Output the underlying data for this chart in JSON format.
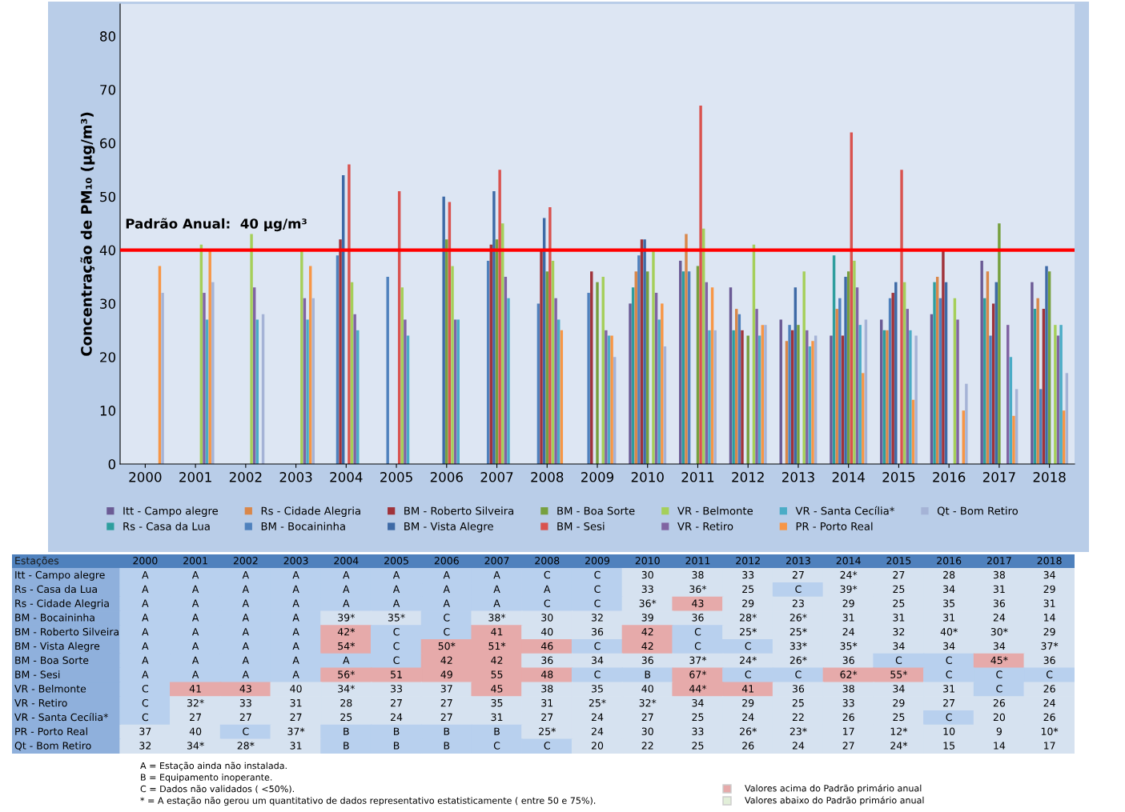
{
  "chart_data": {
    "type": "bar",
    "ylabel": "Concentração de PM₁₀ (µg/m³)",
    "categories": [
      "2000",
      "2001",
      "2002",
      "2003",
      "2004",
      "2005",
      "2006",
      "2007",
      "2008",
      "2009",
      "2010",
      "2011",
      "2012",
      "2013",
      "2014",
      "2015",
      "2016",
      "2017",
      "2018"
    ],
    "ylim": [
      0,
      86
    ],
    "yticks": [
      0,
      10,
      20,
      30,
      40,
      50,
      60,
      70,
      80
    ],
    "grid": false,
    "legend": "bottom",
    "series": [
      {
        "name": "Itt - Campo alegre",
        "color": "#6b5b95",
        "values": [
          null,
          null,
          null,
          null,
          null,
          null,
          null,
          null,
          null,
          null,
          30,
          38,
          33,
          27,
          24,
          27,
          28,
          38,
          34
        ],
        "value_labels": [
          "A",
          "A",
          "A",
          "A",
          "A",
          "A",
          "A",
          "A",
          "C",
          "C",
          "30",
          "38",
          "33",
          "27",
          "24*",
          "27",
          "28",
          "38",
          "34"
        ]
      },
      {
        "name": "Rs - Casa da Lua",
        "color": "#2e9e9e",
        "values": [
          null,
          null,
          null,
          null,
          null,
          null,
          null,
          null,
          null,
          null,
          33,
          36,
          25,
          null,
          39,
          25,
          34,
          31,
          29
        ],
        "value_labels": [
          "A",
          "A",
          "A",
          "A",
          "A",
          "A",
          "A",
          "A",
          "A",
          "C",
          "33",
          "36*",
          "25",
          "C",
          "39*",
          "25",
          "34",
          "31",
          "29"
        ]
      },
      {
        "name": "Rs - Cidade Alegria",
        "color": "#d9874a",
        "values": [
          null,
          null,
          null,
          null,
          null,
          null,
          null,
          null,
          null,
          null,
          36,
          43,
          29,
          23,
          29,
          25,
          35,
          36,
          31
        ],
        "value_labels": [
          "A",
          "A",
          "A",
          "A",
          "A",
          "A",
          "A",
          "A",
          "C",
          "C",
          "36*",
          "43",
          "29",
          "23",
          "29",
          "25",
          "35",
          "36",
          "31"
        ]
      },
      {
        "name": "BM - Bocaininha",
        "color": "#4f81bd",
        "values": [
          null,
          null,
          null,
          null,
          39,
          35,
          null,
          38,
          30,
          32,
          39,
          36,
          28,
          26,
          31,
          31,
          31,
          24,
          14
        ],
        "value_labels": [
          "A",
          "A",
          "A",
          "A",
          "39*",
          "35*",
          "C",
          "38*",
          "30",
          "32",
          "39",
          "36",
          "28*",
          "26*",
          "31",
          "31",
          "31",
          "24",
          "14"
        ]
      },
      {
        "name": "BM - Roberto Silveira",
        "color": "#a0333a",
        "values": [
          null,
          null,
          null,
          null,
          42,
          null,
          null,
          41,
          40,
          36,
          42,
          null,
          25,
          25,
          24,
          32,
          40,
          30,
          29
        ],
        "value_labels": [
          "A",
          "A",
          "A",
          "A",
          "42*",
          "C",
          "C",
          "41",
          "40",
          "36",
          "42",
          "C",
          "25*",
          "25*",
          "24",
          "32",
          "40*",
          "30*",
          "29"
        ]
      },
      {
        "name": "BM - Vista Alegre",
        "color": "#3e6aa6",
        "values": [
          null,
          null,
          null,
          null,
          54,
          null,
          50,
          51,
          46,
          null,
          42,
          null,
          null,
          33,
          35,
          34,
          34,
          34,
          37
        ],
        "value_labels": [
          "A",
          "A",
          "A",
          "A",
          "54*",
          "C",
          "50*",
          "51*",
          "46",
          "C",
          "42",
          "C",
          "C",
          "33*",
          "35*",
          "34",
          "34",
          "34",
          "37*"
        ]
      },
      {
        "name": "BM - Boa Sorte",
        "color": "#77a03f",
        "values": [
          null,
          null,
          null,
          null,
          null,
          null,
          42,
          42,
          36,
          34,
          36,
          37,
          24,
          26,
          36,
          null,
          null,
          45,
          36
        ],
        "value_labels": [
          "A",
          "A",
          "A",
          "A",
          "A",
          "C",
          "42",
          "42",
          "36",
          "34",
          "36",
          "37*",
          "24*",
          "26*",
          "36",
          "C",
          "C",
          "45*",
          "36"
        ]
      },
      {
        "name": "BM - Sesi",
        "color": "#d9534f",
        "values": [
          null,
          null,
          null,
          null,
          56,
          51,
          49,
          55,
          48,
          null,
          null,
          67,
          null,
          null,
          62,
          55,
          null,
          null,
          null
        ],
        "value_labels": [
          "A",
          "A",
          "A",
          "A",
          "56*",
          "51",
          "49",
          "55",
          "48",
          "C",
          "B",
          "67*",
          "C",
          "C",
          "62*",
          "55*",
          "C",
          "C",
          "C"
        ]
      },
      {
        "name": "VR - Belmonte",
        "color": "#a5cf5a",
        "values": [
          null,
          41,
          43,
          40,
          34,
          33,
          37,
          45,
          38,
          35,
          40,
          44,
          41,
          36,
          38,
          34,
          31,
          null,
          26
        ],
        "value_labels": [
          "C",
          "41",
          "43",
          "40",
          "34*",
          "33",
          "37",
          "45",
          "38",
          "35",
          "40",
          "44*",
          "41",
          "36",
          "38",
          "34",
          "31",
          "C",
          "26"
        ]
      },
      {
        "name": "VR - Retiro",
        "color": "#8064a2",
        "values": [
          null,
          32,
          33,
          31,
          28,
          27,
          27,
          35,
          31,
          25,
          32,
          34,
          29,
          25,
          33,
          29,
          27,
          26,
          24
        ],
        "value_labels": [
          "C",
          "32*",
          "33",
          "31",
          "28",
          "27",
          "27",
          "35",
          "31",
          "25*",
          "32*",
          "34",
          "29",
          "25",
          "33",
          "29",
          "27",
          "26",
          "24"
        ]
      },
      {
        "name": "VR - Santa Cecília*",
        "color": "#4bacc6",
        "values": [
          null,
          27,
          27,
          27,
          25,
          24,
          27,
          31,
          27,
          24,
          27,
          25,
          24,
          22,
          26,
          25,
          null,
          20,
          26
        ],
        "value_labels": [
          "C",
          "27",
          "27",
          "27",
          "25",
          "24",
          "27",
          "31",
          "27",
          "24",
          "27",
          "25",
          "24",
          "22",
          "26",
          "25",
          "C",
          "20",
          "26"
        ]
      },
      {
        "name": "PR - Porto Real",
        "color": "#f79646",
        "values": [
          37,
          40,
          null,
          37,
          null,
          null,
          null,
          null,
          25,
          24,
          30,
          33,
          26,
          23,
          17,
          12,
          10,
          9,
          10
        ],
        "value_labels": [
          "37",
          "40",
          "C",
          "37*",
          "B",
          "B",
          "B",
          "B",
          "25*",
          "24",
          "30",
          "33",
          "26*",
          "23*",
          "17",
          "12*",
          "10",
          "9",
          "10*"
        ]
      },
      {
        "name": "Qt - Bom Retiro",
        "color": "#a5b3d6",
        "values": [
          32,
          34,
          28,
          31,
          null,
          null,
          null,
          null,
          null,
          20,
          22,
          25,
          26,
          24,
          27,
          24,
          15,
          14,
          17
        ],
        "value_labels": [
          "32",
          "34*",
          "28*",
          "31",
          "B",
          "B",
          "B",
          "C",
          "C",
          "20",
          "22",
          "25",
          "26",
          "24",
          "27",
          "24*",
          "15",
          "14",
          "17"
        ]
      }
    ],
    "ref_lines": [
      {
        "axis": "y",
        "value": 40,
        "label": "Padrão Anual:  40 µg/m³",
        "color": "#ff0000"
      }
    ],
    "annotations": [
      "Estações",
      "A = Estação ainda não instalada.",
      "B = Equipamento inoperante.",
      "C = Dados não validados ( <50%).",
      "* = A estação não gerou um quantitativo de dados representativo estatisticamente ( entre 50 e 75%).",
      "Valores acima do Padrão primário anual",
      "Valores abaixo do Padrão primário anual"
    ]
  }
}
